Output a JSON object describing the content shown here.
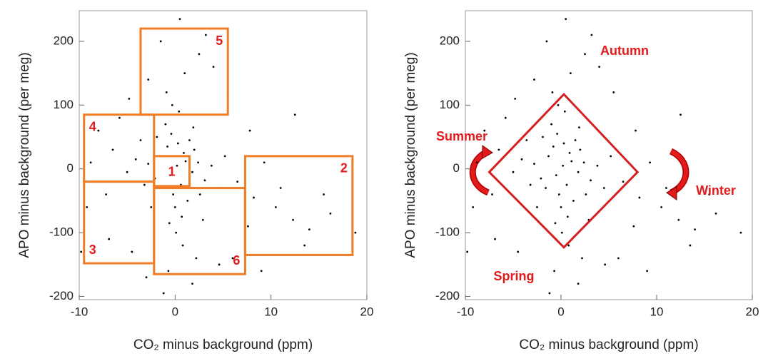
{
  "chart_data": [
    {
      "type": "scatter",
      "x_label": "CO₂ minus background (ppm)",
      "y_label": "APO minus background (per meg)",
      "xlim": [
        -10,
        20
      ],
      "ylim": [
        -205,
        248
      ],
      "xticks": [
        -10,
        0,
        10,
        20
      ],
      "yticks": [
        -200,
        -100,
        0,
        100,
        200
      ],
      "series": [
        {
          "color": "#000000",
          "x": [
            0.2,
            -0.5,
            1.1,
            -1.3,
            0.6,
            -0.8,
            1.8,
            -2.1,
            0.3,
            -0.2,
            2.4,
            -1.6,
            0.9,
            -0.4,
            1.3,
            -2.8,
            3.1,
            0.0,
            -1.0,
            0.7,
            2.0,
            -3.2,
            1.5,
            -0.6,
            0.4,
            3.8,
            -4.1,
            2.6,
            -1.9,
            0.1,
            -0.3,
            4.5,
            -5.0,
            1.9,
            -2.5,
            5.2,
            -3.6,
            0.8,
            -0.9,
            2.9,
            6.5,
            8.2,
            10.5,
            12.3,
            14.0,
            16.2,
            18.8,
            11.0,
            9.3,
            13.5,
            7.6,
            15.5,
            -6.5,
            -8.0,
            -7.2,
            -9.2,
            -5.8,
            -8.8,
            -6.9,
            -4.5,
            1.0,
            2.5,
            -1.5,
            4.0,
            -2.8,
            0.5,
            3.2,
            -0.7,
            1.8,
            -1.2,
            4.6,
            -3.0,
            6.0,
            7.8,
            12.5,
            -9.8,
            9.0,
            5.5,
            -4.8,
            2.2
          ],
          "y": [
            5,
            -10,
            12,
            20,
            -25,
            35,
            -5,
            -15,
            40,
            -40,
            10,
            -30,
            25,
            55,
            -50,
            8,
            -18,
            -60,
            70,
            -75,
            30,
            -25,
            45,
            -85,
            90,
            5,
            15,
            -40,
            50,
            -100,
            100,
            -30,
            -5,
            65,
            -60,
            20,
            45,
            -120,
            120,
            -80,
            -20,
            -45,
            -60,
            -80,
            -95,
            -70,
            -100,
            -30,
            10,
            -120,
            -90,
            -40,
            30,
            60,
            -40,
            -60,
            80,
            10,
            -110,
            -130,
            150,
            180,
            200,
            160,
            140,
            235,
            210,
            -160,
            -180,
            -195,
            -150,
            -170,
            -140,
            60,
            85,
            -130,
            -160,
            120,
            110,
            -140
          ]
        }
      ],
      "box_color": "#f07c26",
      "boxes": [
        {
          "label": "1",
          "x": [
            -2.2,
            1.5
          ],
          "y": [
            -27,
            20
          ]
        },
        {
          "label": "2",
          "x": [
            7.3,
            18.5
          ],
          "y": [
            -135,
            20
          ]
        },
        {
          "label": "3",
          "x": [
            -9.5,
            -2.2
          ],
          "y": [
            -148,
            -20
          ]
        },
        {
          "label": "4",
          "x": [
            -9.5,
            -2.2
          ],
          "y": [
            -20,
            85
          ]
        },
        {
          "label": "5",
          "x": [
            -3.6,
            5.5
          ],
          "y": [
            85,
            220
          ]
        },
        {
          "label": "6",
          "x": [
            -2.2,
            7.3
          ],
          "y": [
            -165,
            -30
          ]
        }
      ]
    },
    {
      "type": "scatter",
      "x_label": "CO₂ minus background (ppm)",
      "y_label": "APO minus background (per meg)",
      "xlim": [
        -10,
        20
      ],
      "ylim": [
        -205,
        248
      ],
      "xticks": [
        -10,
        0,
        10,
        20
      ],
      "yticks": [
        -200,
        -100,
        0,
        100,
        200
      ],
      "series": [
        {
          "color": "#000000",
          "x": [
            0.2,
            -0.5,
            1.1,
            -1.3,
            0.6,
            -0.8,
            1.8,
            -2.1,
            0.3,
            -0.2,
            2.4,
            -1.6,
            0.9,
            -0.4,
            1.3,
            -2.8,
            3.1,
            0.0,
            -1.0,
            0.7,
            2.0,
            -3.2,
            1.5,
            -0.6,
            0.4,
            3.8,
            -4.1,
            2.6,
            -1.9,
            0.1,
            -0.3,
            4.5,
            -5.0,
            1.9,
            -2.5,
            5.2,
            -3.6,
            0.8,
            -0.9,
            2.9,
            6.5,
            8.2,
            10.5,
            12.3,
            14.0,
            16.2,
            18.8,
            11.0,
            9.3,
            13.5,
            7.6,
            15.5,
            -6.5,
            -8.0,
            -7.2,
            -9.2,
            -5.8,
            -8.8,
            -6.9,
            -4.5,
            1.0,
            2.5,
            -1.5,
            4.0,
            -2.8,
            0.5,
            3.2,
            -0.7,
            1.8,
            -1.2,
            4.6,
            -3.0,
            6.0,
            7.8,
            12.5,
            -9.8,
            9.0,
            5.5,
            -4.8,
            2.2
          ],
          "y": [
            5,
            -10,
            12,
            20,
            -25,
            35,
            -5,
            -15,
            40,
            -40,
            10,
            -30,
            25,
            55,
            -50,
            8,
            -18,
            -60,
            70,
            -75,
            30,
            -25,
            45,
            -85,
            90,
            5,
            15,
            -40,
            50,
            -100,
            100,
            -30,
            -5,
            65,
            -60,
            20,
            45,
            -120,
            120,
            -80,
            -20,
            -45,
            -60,
            -80,
            -95,
            -70,
            -100,
            -30,
            10,
            -120,
            -90,
            -40,
            30,
            60,
            -40,
            -60,
            80,
            10,
            -110,
            -130,
            150,
            180,
            200,
            160,
            140,
            235,
            210,
            -160,
            -180,
            -195,
            -150,
            -170,
            -140,
            60,
            85,
            -130,
            -160,
            120,
            110,
            -140
          ]
        }
      ],
      "polygon": {
        "color": "#d42020",
        "x": [
          -7.5,
          0.3,
          8,
          0.3
        ],
        "y": [
          -5,
          117,
          -5,
          -123
        ]
      },
      "annotation_color": "#e31a1c",
      "annotations": [
        {
          "text": "Autumn"
        },
        {
          "text": "Summer"
        },
        {
          "text": "Winter"
        },
        {
          "text": "Spring"
        }
      ]
    }
  ]
}
